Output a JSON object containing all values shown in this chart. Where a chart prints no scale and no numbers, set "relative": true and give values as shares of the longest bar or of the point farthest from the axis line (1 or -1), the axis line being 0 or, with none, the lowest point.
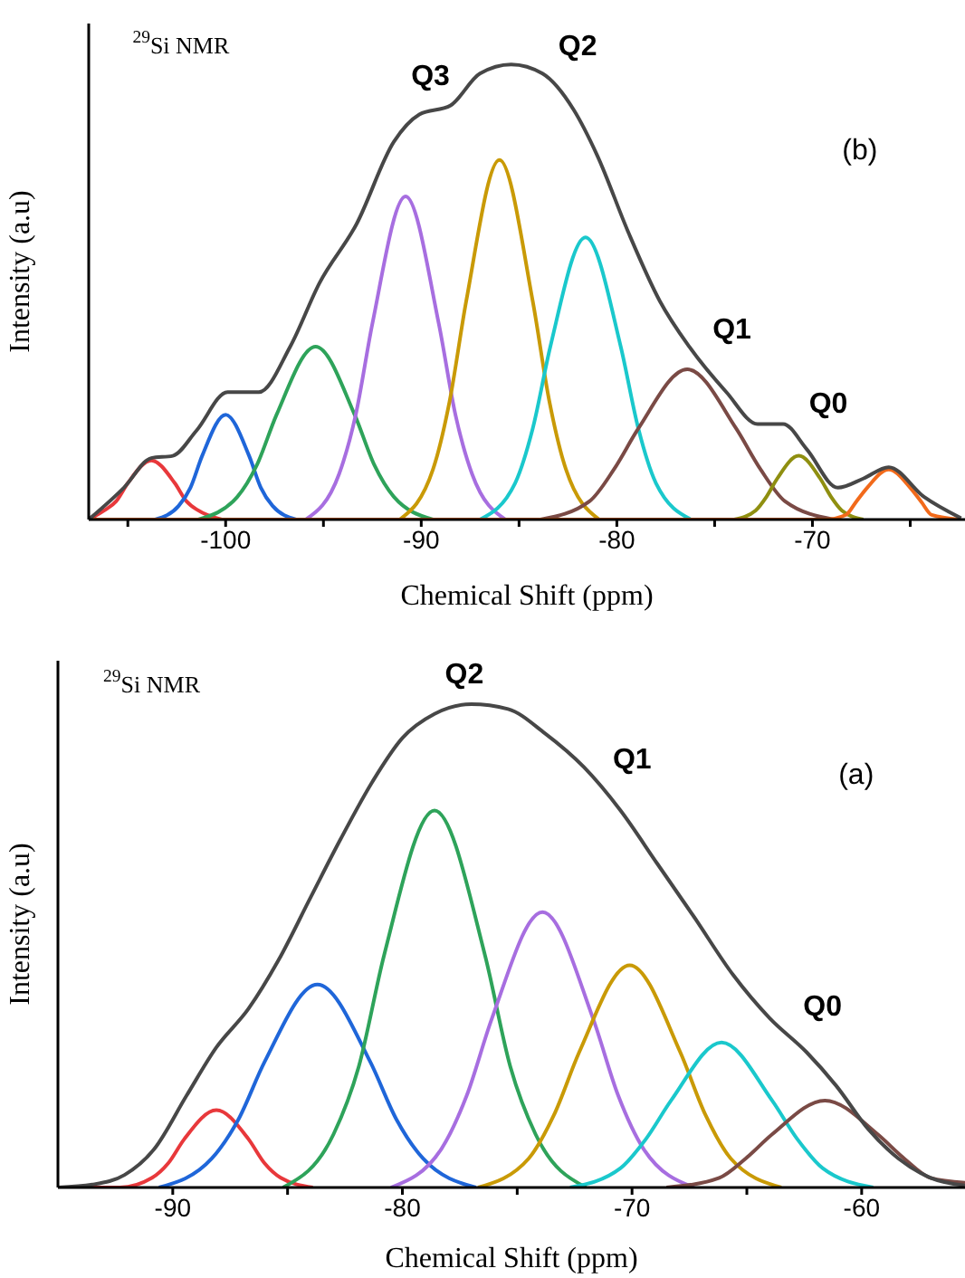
{
  "chart_data": [
    {
      "type": "line",
      "relative": true,
      "xlabel": "Chemical Shift (ppm)",
      "ylabel": "Intensity (a.u)",
      "xlim": [
        -107,
        -62.2
      ],
      "xticks": [
        {
          "value": -105,
          "label": null
        },
        -100,
        {
          "value": -95,
          "label": null
        },
        -90,
        {
          "value": -85,
          "label": null
        },
        -80,
        {
          "value": -75,
          "label": null
        },
        -70,
        {
          "value": -65,
          "label": null
        }
      ],
      "grid": false,
      "legend": false,
      "marker": "none",
      "line_style": "solid",
      "annotations": [
        "$^{29}$Si NMR",
        "(b)",
        "Q3",
        "Q2",
        "Q1",
        "Q0"
      ],
      "series": [
        {
          "color": "#e8383b",
          "x": [
            -107,
            -106.2,
            -105.6,
            -105,
            -103.8,
            -102.6,
            -102,
            -101.4,
            -100.2
          ],
          "values": [
            0,
            0.02,
            0.04,
            0.08,
            0.13,
            0.08,
            0.04,
            0.02,
            0
          ]
        },
        {
          "color": "#1f66d9",
          "x": [
            -103.6,
            -102.4,
            -101.8,
            -101.2,
            -100,
            -98.8,
            -98.2,
            -97.6,
            -96.4
          ],
          "values": [
            0,
            0.03,
            0.07,
            0.14,
            0.23,
            0.14,
            0.07,
            0.03,
            0
          ]
        },
        {
          "color": "#2ea35a",
          "x": [
            -101.4,
            -99.4,
            -98.4,
            -97.4,
            -95.4,
            -93.4,
            -92.4,
            -91.4,
            -89.4
          ],
          "values": [
            0,
            0.05,
            0.12,
            0.23,
            0.38,
            0.23,
            0.12,
            0.05,
            0
          ]
        },
        {
          "color": "#a76ee0",
          "x": [
            -95.9,
            -94.2,
            -93.35,
            -92.5,
            -90.8,
            -89.1,
            -88.25,
            -87.4,
            -85.7
          ],
          "values": [
            0,
            0.1,
            0.23,
            0.43,
            0.71,
            0.43,
            0.23,
            0.1,
            0
          ]
        },
        {
          "color": "#c99a06",
          "x": [
            -91.1,
            -89.4,
            -88.55,
            -87.7,
            -86,
            -84.3,
            -83.45,
            -82.6,
            -80.9
          ],
          "values": [
            0,
            0.11,
            0.26,
            0.48,
            0.79,
            0.48,
            0.26,
            0.11,
            0
          ]
        },
        {
          "color": "#1ac8cc",
          "x": [
            -87,
            -85.2,
            -84.3,
            -83.4,
            -81.6,
            -79.8,
            -78.9,
            -78,
            -76.2
          ],
          "values": [
            0,
            0.08,
            0.2,
            0.38,
            0.62,
            0.38,
            0.2,
            0.08,
            0
          ]
        },
        {
          "color": "#7a4a45",
          "x": [
            -83.9,
            -81.4,
            -80.15,
            -78.9,
            -76.4,
            -73.9,
            -72.65,
            -71.4,
            -68.9
          ],
          "values": [
            0,
            0.04,
            0.11,
            0.2,
            0.33,
            0.2,
            0.11,
            0.04,
            0
          ]
        },
        {
          "color": "#8f8f10",
          "x": [
            -74,
            -72.9,
            -72.35,
            -71.8,
            -70.7,
            -69.6,
            -69.05,
            -68.5,
            -67.4
          ],
          "values": [
            0,
            0.02,
            0.05,
            0.09,
            0.14,
            0.09,
            0.05,
            0.02,
            0
          ]
        },
        {
          "color": "#f26a1b",
          "x": [
            -107,
            -69.4,
            -68.3,
            -67.75,
            -67.2,
            -66.1,
            -65,
            -64.45,
            -63.9,
            -62.5
          ],
          "values": [
            0,
            0,
            0.01,
            0.04,
            0.07,
            0.11,
            0.07,
            0.04,
            0.01,
            0
          ]
        },
        {
          "color": "#474747",
          "x": [
            -107,
            -105.2,
            -103.8,
            -102.7,
            -101.5,
            -99.9,
            -98.3,
            -96.7,
            -95.2,
            -93.3,
            -91.4,
            -90.1,
            -88.5,
            -87,
            -85.4,
            -83.8,
            -82.2,
            -81,
            -79.4,
            -77.8,
            -76.3,
            -74.4,
            -72.8,
            -71.5,
            -70.3,
            -68.7,
            -67.4,
            -66.1,
            -64.3,
            -62.4
          ],
          "values": [
            0,
            0.07,
            0.135,
            0.14,
            0.195,
            0.28,
            0.28,
            0.38,
            0.52,
            0.65,
            0.83,
            0.89,
            0.91,
            0.98,
            1,
            0.98,
            0.9,
            0.8,
            0.63,
            0.48,
            0.38,
            0.28,
            0.21,
            0.21,
            0.155,
            0.07,
            0.09,
            0.115,
            0.05,
            0.003
          ]
        }
      ]
    },
    {
      "type": "line",
      "relative": true,
      "xlabel": "Chemical Shift (ppm)",
      "ylabel": "Intensity (a.u)",
      "xlim": [
        -95,
        -55.5
      ],
      "xticks": [
        -90,
        {
          "value": -85,
          "label": null
        },
        -80,
        {
          "value": -75,
          "label": null
        },
        -70,
        {
          "value": -65,
          "label": null
        },
        -60
      ],
      "grid": false,
      "legend": false,
      "marker": "none",
      "line_style": "solid",
      "annotations": [
        "$^{29}$Si NMR",
        "(a)",
        "Q2",
        "Q1",
        "Q0"
      ],
      "series": [
        {
          "color": "#e8383b",
          "x": [
            -95,
            -92.3,
            -90.9,
            -90.2,
            -89.5,
            -88.1,
            -86.7,
            -86,
            -85.3,
            -83.9
          ],
          "values": [
            0,
            0,
            0.02,
            0.05,
            0.1,
            0.16,
            0.1,
            0.05,
            0.02,
            0
          ]
        },
        {
          "color": "#1f66d9",
          "x": [
            -90.6,
            -88.3,
            -87.15,
            -86,
            -83.7,
            -81.4,
            -80.25,
            -79.1,
            -76.8
          ],
          "values": [
            0,
            0.06,
            0.14,
            0.26,
            0.42,
            0.26,
            0.14,
            0.06,
            0
          ]
        },
        {
          "color": "#2ea35a",
          "x": [
            -85.2,
            -83,
            -81.9,
            -80.8,
            -78.6,
            -76.4,
            -75.3,
            -74.2,
            -72
          ],
          "values": [
            0,
            0.11,
            0.25,
            0.48,
            0.78,
            0.48,
            0.25,
            0.11,
            0
          ]
        },
        {
          "color": "#a76ee0",
          "x": [
            -80.5,
            -78.3,
            -77.2,
            -76.1,
            -73.9,
            -71.7,
            -70.6,
            -69.5,
            -67.3
          ],
          "values": [
            0,
            0.08,
            0.19,
            0.35,
            0.57,
            0.35,
            0.19,
            0.08,
            0
          ]
        },
        {
          "color": "#c99a06",
          "x": [
            -76.7,
            -74.5,
            -73.4,
            -72.3,
            -70.1,
            -67.9,
            -66.8,
            -65.7,
            -63.5
          ],
          "values": [
            0,
            0.06,
            0.15,
            0.28,
            0.46,
            0.28,
            0.15,
            0.06,
            0
          ]
        },
        {
          "color": "#1ac8cc",
          "x": [
            -72.7,
            -70.5,
            -69.4,
            -68.3,
            -66.1,
            -63.9,
            -62.8,
            -61.7,
            -59.5
          ],
          "values": [
            0,
            0.04,
            0.1,
            0.18,
            0.3,
            0.18,
            0.1,
            0.04,
            0
          ]
        },
        {
          "color": "#7a4a45",
          "x": [
            -68.5,
            -66.2,
            -65.05,
            -63.9,
            -61.6,
            -59.3,
            -58.15,
            -57,
            -55.5
          ],
          "values": [
            0,
            0.02,
            0.06,
            0.11,
            0.18,
            0.11,
            0.06,
            0.02,
            0.01
          ]
        },
        {
          "color": "#474747",
          "x": [
            -95,
            -93.5,
            -92.1,
            -90.8,
            -89.4,
            -88.1,
            -86.7,
            -85.4,
            -84,
            -82.7,
            -81.3,
            -80,
            -78.6,
            -77,
            -75.4,
            -73.8,
            -72.1,
            -70.5,
            -68.9,
            -67.3,
            -65.6,
            -64,
            -62.4,
            -61.1,
            -59.7,
            -58.4,
            -57,
            -55.5
          ],
          "values": [
            0,
            0.006,
            0.026,
            0.08,
            0.19,
            0.29,
            0.37,
            0.47,
            0.6,
            0.72,
            0.84,
            0.93,
            0.98,
            1,
            0.99,
            0.94,
            0.87,
            0.78,
            0.67,
            0.56,
            0.44,
            0.35,
            0.28,
            0.21,
            0.12,
            0.06,
            0.02,
            0.004
          ]
        }
      ]
    }
  ]
}
